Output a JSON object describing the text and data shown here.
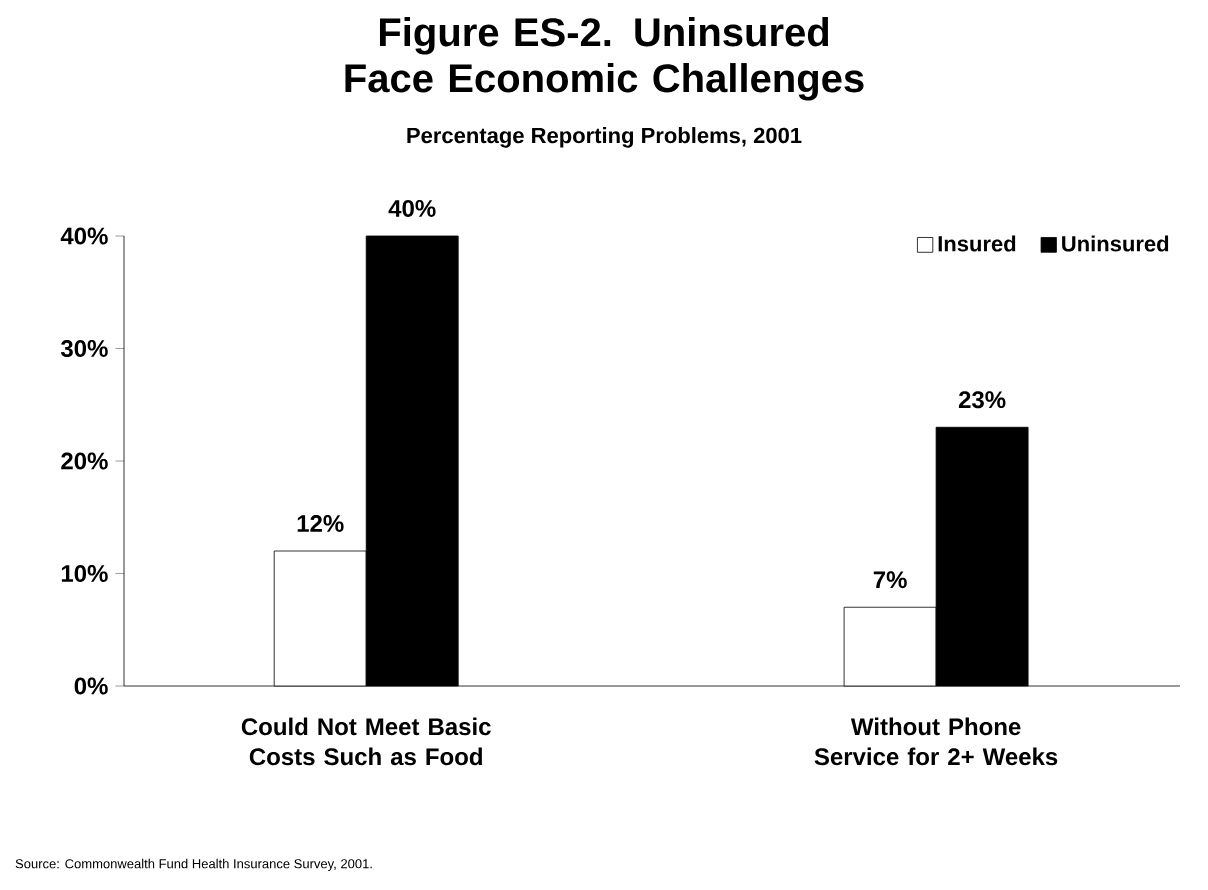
{
  "chart_data": {
    "type": "bar",
    "title": "Figure ES-2. Uninsured Face Economic Challenges",
    "subtitle": "Percentage Reporting Problems, 2001",
    "categories": [
      "Could Not Meet Basic Costs Such as Food",
      "Without Phone Service for 2+ Weeks"
    ],
    "series": [
      {
        "name": "Insured",
        "color": "#ffffff",
        "values": [
          12,
          7
        ],
        "value_labels": [
          "12%",
          "7%"
        ]
      },
      {
        "name": "Uninsured",
        "color": "#000000",
        "values": [
          40,
          23
        ],
        "value_labels": [
          "40%",
          "23%"
        ]
      }
    ],
    "ylim": [
      0,
      40
    ],
    "yticks": [
      {
        "value": 0,
        "label": "0%"
      },
      {
        "value": 10,
        "label": "10%"
      },
      {
        "value": 20,
        "label": "20%"
      },
      {
        "value": 30,
        "label": "30%"
      },
      {
        "value": 40,
        "label": "40%"
      }
    ],
    "legend": "top right",
    "annotations": [
      "Source: Commonwealth Fund Health Insurance Survey, 2001."
    ]
  }
}
